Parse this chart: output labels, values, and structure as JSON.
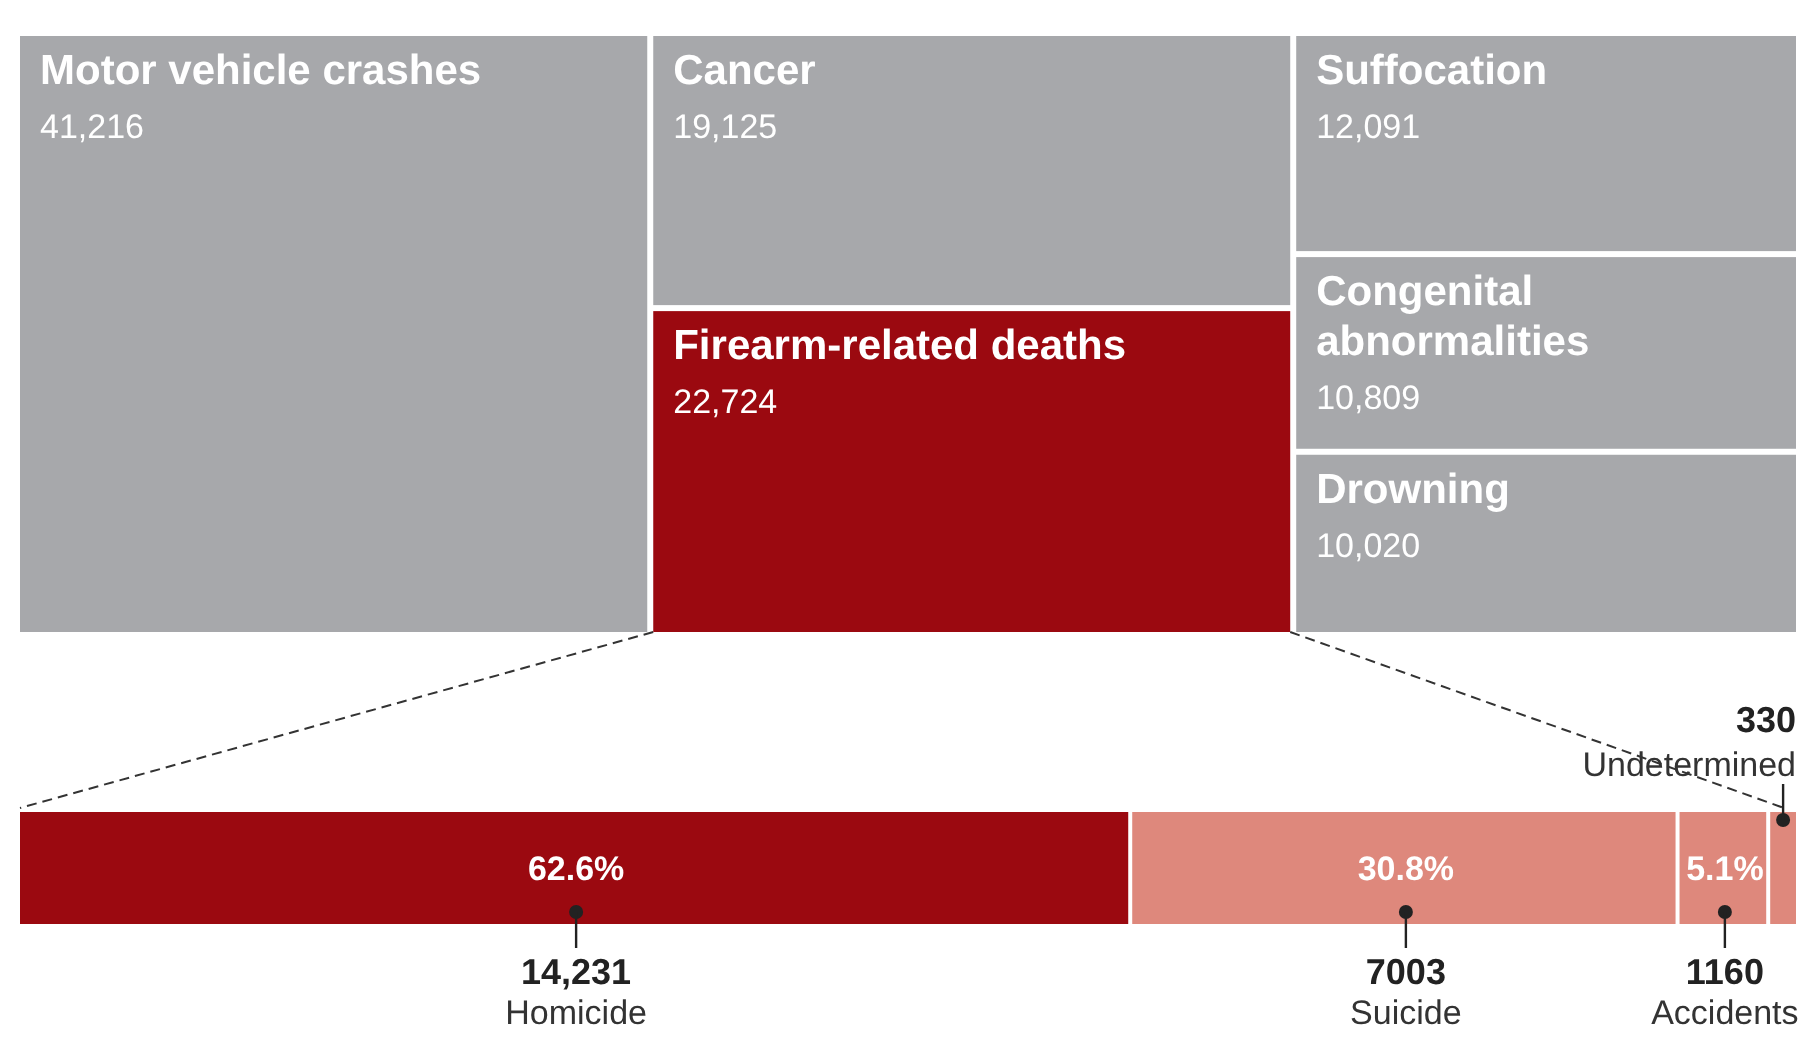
{
  "chart_data": [
    {
      "type": "other",
      "categories": [
        "Motor vehicle crashes",
        "Cancer",
        "Firearm-related deaths",
        "Suffocation",
        "Congenital abnormalities",
        "Drowning"
      ],
      "values": [
        41216,
        19125,
        22724,
        12091,
        10809,
        10020
      ],
      "value_labels": [
        "41,216",
        "19,125",
        "22,724",
        "12,091",
        "10,809",
        "10,020"
      ],
      "colors": [
        "#a7a8ab",
        "#a7a8ab",
        "#9b0910",
        "#a7a8ab",
        "#a7a8ab",
        "#a7a8ab"
      ]
    },
    {
      "type": "bar",
      "stacked": true,
      "orientation": "horizontal",
      "categories": [
        null
      ],
      "xlim": [
        0,
        22724
      ],
      "series": [
        {
          "name": "Homicide",
          "color": "#9b0910",
          "values": [
            14231
          ],
          "value_labels": [
            "14,231"
          ]
        },
        {
          "name": "Suicide",
          "color": "#de887c",
          "values": [
            7003
          ],
          "value_labels": [
            "7003"
          ]
        },
        {
          "name": "Accidents",
          "color": "#de887c",
          "values": [
            1160
          ],
          "value_labels": [
            "1160"
          ]
        },
        {
          "name": "Undetermined",
          "color": "#de887c",
          "values": [
            330
          ],
          "value_labels": [
            "330"
          ]
        }
      ],
      "annotations": [
        "62.6%",
        "30.8%",
        "5.1%"
      ]
    }
  ]
}
